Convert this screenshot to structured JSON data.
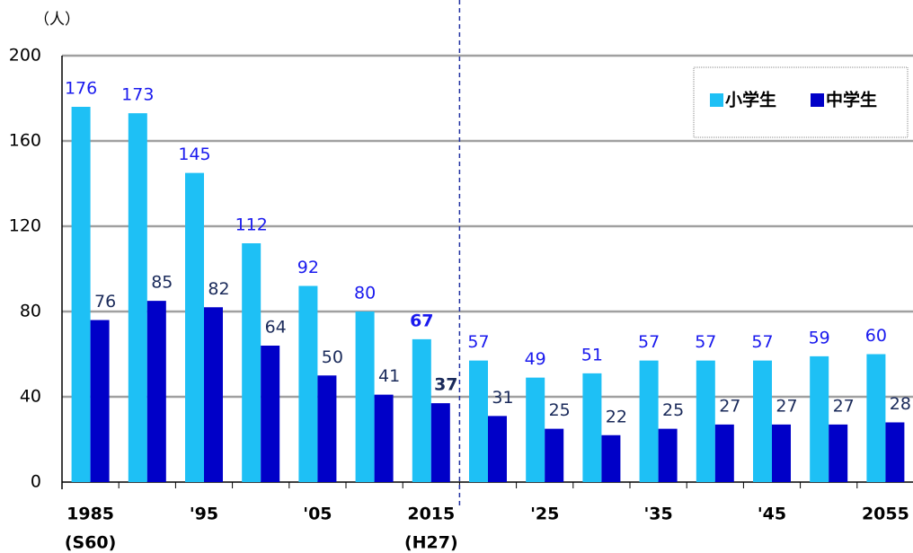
{
  "chart_data": {
    "type": "bar",
    "y_unit": "（人）",
    "categories": [
      "1985",
      null,
      "'95",
      null,
      "'05",
      null,
      "2015",
      null,
      "'25",
      null,
      "'35",
      null,
      "'45",
      null,
      "2055"
    ],
    "category_notes": [
      "(S60)",
      null,
      null,
      null,
      null,
      null,
      "(H27)",
      null,
      null,
      null,
      null,
      null,
      null,
      null,
      null
    ],
    "series": [
      {
        "name": "小学生",
        "color": "#1ec0f5",
        "label_color": "#1a1aee",
        "values": [
          176,
          173,
          145,
          112,
          92,
          80,
          67,
          57,
          49,
          51,
          57,
          57,
          57,
          59,
          60
        ]
      },
      {
        "name": "中学生",
        "color": "#0000c8",
        "label_color": "#1a2a5a",
        "values": [
          76,
          85,
          82,
          64,
          50,
          41,
          37,
          31,
          25,
          22,
          25,
          27,
          27,
          27,
          28
        ]
      }
    ],
    "ylim": [
      0,
      200
    ],
    "yticks": [
      0,
      40,
      80,
      120,
      160,
      200
    ],
    "grid": true,
    "legend": "upper right"
  }
}
